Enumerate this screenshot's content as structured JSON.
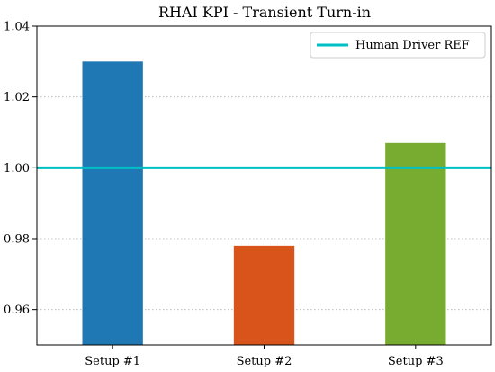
{
  "chart_data": {
    "type": "bar",
    "title": "RHAI KPI - Transient Turn-in",
    "xlabel": "",
    "ylabel": "",
    "categories": [
      "Setup #1",
      "Setup #2",
      "Setup #3"
    ],
    "values": [
      1.03,
      0.978,
      1.007
    ],
    "bar_colors": [
      "#1f77b4",
      "#d9541a",
      "#77ac30"
    ],
    "ylim": [
      0.95,
      1.04
    ],
    "yticks": [
      0.96,
      0.98,
      1.0,
      1.02,
      1.04
    ],
    "ytick_labels": [
      "0.96",
      "0.98",
      "1.00",
      "1.02",
      "1.04"
    ],
    "grid": "y-dotted",
    "reference_line": {
      "name": "Human Driver REF",
      "value": 1.0,
      "color": "#00bfc4"
    },
    "legend": {
      "position": "top-right",
      "entries": [
        "Human Driver REF"
      ]
    }
  }
}
